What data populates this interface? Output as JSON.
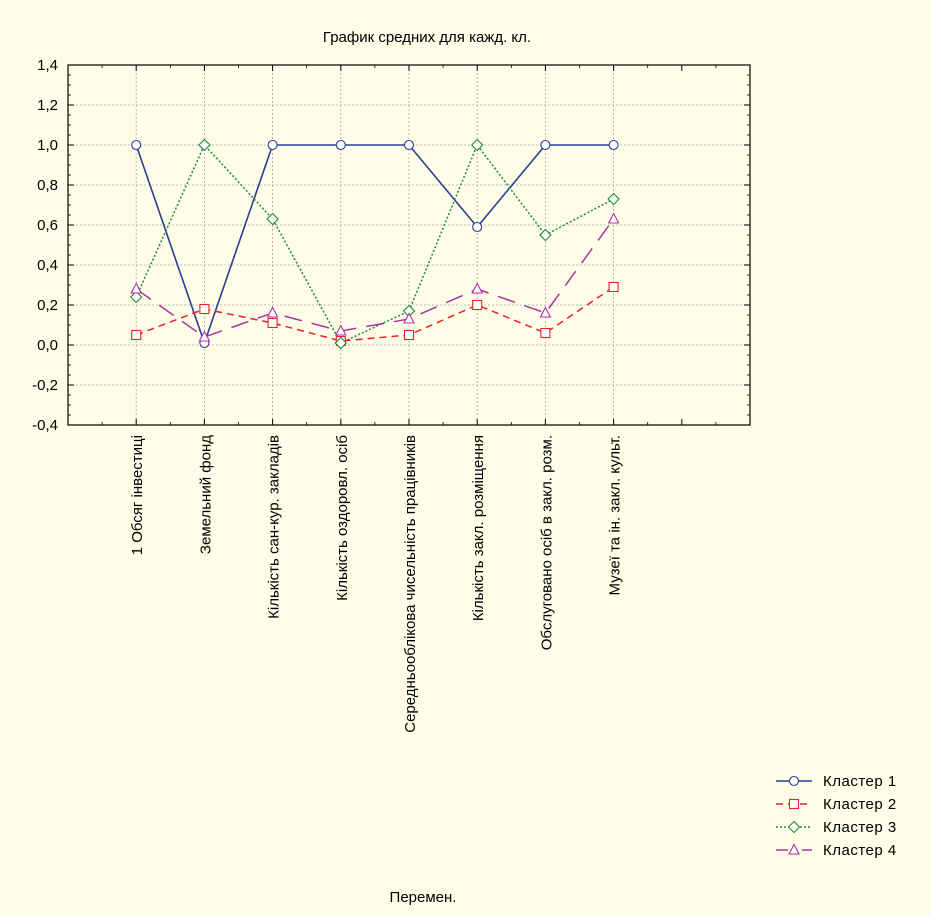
{
  "chart_data": {
    "type": "line",
    "title": "График средних для кажд. кл.",
    "xlabel": "Перемен.",
    "ylabel": "",
    "ylim": [
      -0.4,
      1.4
    ],
    "yticks": [
      "-0,4",
      "-0,2",
      "0,0",
      "0,2",
      "0,4",
      "0,6",
      "0,8",
      "1,0",
      "1,2",
      "1,4"
    ],
    "categories": [
      "1 Обсяг інвестиці",
      "Земельний фонд",
      "Кількість сан-кур. закладів",
      "Кількість оздоровл. осіб",
      "Середньооблікова чисельність працівників",
      "Кількість закл. розміщення",
      "Обслуговано осіб в закл. розм.",
      "Музеї та ін. закл. культ."
    ],
    "grid": true,
    "legend_position": "bottom-right",
    "series": [
      {
        "name": "Кластер  1",
        "values": [
          1.0,
          0.01,
          1.0,
          1.0,
          1.0,
          0.59,
          1.0,
          1.0
        ],
        "color": "#2c3e91",
        "dash": "solid",
        "marker": "circle"
      },
      {
        "name": "Кластер  2",
        "values": [
          0.05,
          0.18,
          0.11,
          0.02,
          0.05,
          0.2,
          0.06,
          0.29
        ],
        "color": "#e8222a",
        "dash": "dashed",
        "marker": "square"
      },
      {
        "name": "Кластер  3",
        "values": [
          0.24,
          1.0,
          0.63,
          0.01,
          0.17,
          1.0,
          0.55,
          0.73
        ],
        "color": "#1d8a3a",
        "dash": "dotted",
        "marker": "diamond"
      },
      {
        "name": "Кластер  4",
        "values": [
          0.28,
          0.04,
          0.16,
          0.07,
          0.13,
          0.28,
          0.16,
          0.63
        ],
        "color": "#b0329f",
        "dash": "longdash",
        "marker": "triangle"
      }
    ]
  }
}
